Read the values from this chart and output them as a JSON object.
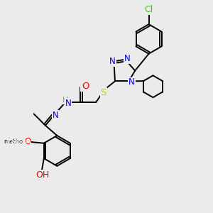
{
  "bg_color": "#ebebeb",
  "atom_colors": {
    "C": "#000000",
    "N": "#0000ee",
    "O": "#ee0000",
    "S": "#cccc00",
    "Cl": "#33cc00",
    "H": "#5f9ea0"
  },
  "bond_color": "#000000",
  "bond_width": 1.4,
  "font_size": 8.5
}
